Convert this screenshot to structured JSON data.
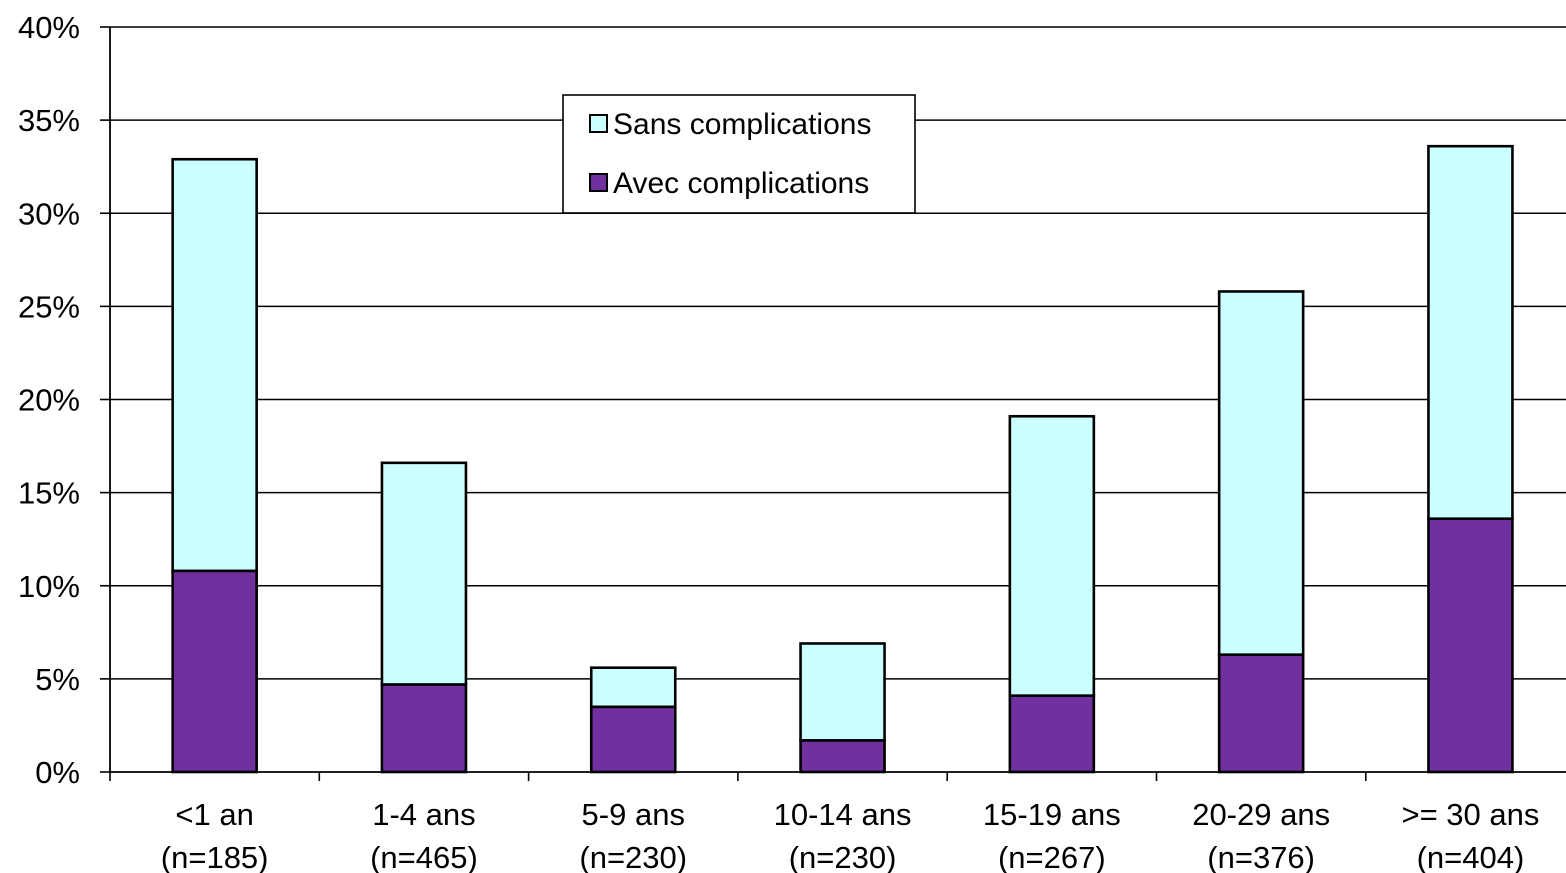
{
  "chart_data": {
    "type": "bar",
    "stacked": true,
    "categories": [
      [
        "<1 an",
        "(n=185)"
      ],
      [
        "1-4 ans",
        "(n=465)"
      ],
      [
        "5-9 ans",
        "(n=230)"
      ],
      [
        "10-14 ans",
        "(n=230)"
      ],
      [
        "15-19 ans",
        "(n=267)"
      ],
      [
        "20-29 ans",
        "(n=376)"
      ],
      [
        ">= 30 ans",
        "(n=404)"
      ]
    ],
    "series": [
      {
        "name": "Avec complications",
        "color": "#7030A0",
        "values": [
          10.8,
          4.7,
          3.5,
          1.7,
          4.1,
          6.3,
          13.6
        ]
      },
      {
        "name": "Sans complications",
        "color": "#CCFFFF",
        "values": [
          22.1,
          11.9,
          2.1,
          5.2,
          15.0,
          19.5,
          20.0
        ]
      }
    ],
    "ylim": [
      0,
      40
    ],
    "yticks": [
      "0%",
      "5%",
      "10%",
      "15%",
      "20%",
      "25%",
      "30%",
      "35%",
      "40%"
    ],
    "grid": true,
    "legend": {
      "placement": "top-center",
      "order": [
        "Sans complications",
        "Avec complications"
      ]
    },
    "title": "",
    "xlabel": "",
    "ylabel": ""
  }
}
